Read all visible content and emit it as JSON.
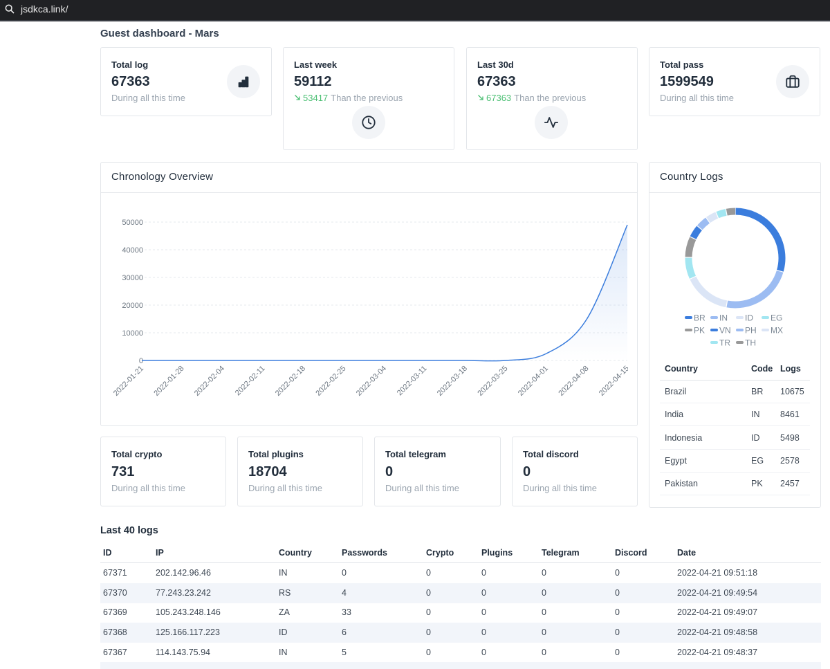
{
  "address_bar": {
    "url": "jsdkca.link/"
  },
  "header": {
    "title": "Guest dashboard - Mars"
  },
  "stat_cards": [
    {
      "label": "Total log",
      "value": 67363,
      "note": "During all this time"
    },
    {
      "label": "Last week",
      "value": 59112,
      "change": 53417,
      "note": "Than the previous"
    },
    {
      "label": "Last 30d",
      "value": 67363,
      "change": 67363,
      "note": "Than the previous"
    },
    {
      "label": "Total pass",
      "value": 1599549,
      "note": "During all this time"
    }
  ],
  "chart_data": [
    {
      "type": "line",
      "title": "Chronology Overview",
      "x": [
        "2022-01-21",
        "2022-01-28",
        "2022-02-04",
        "2022-02-11",
        "2022-02-18",
        "2022-02-25",
        "2022-03-04",
        "2022-03-11",
        "2022-03-18",
        "2022-03-25",
        "2022-04-01",
        "2022-04-08",
        "2022-04-15"
      ],
      "values": [
        0,
        0,
        0,
        0,
        0,
        0,
        0,
        0,
        0,
        0,
        2500,
        15000,
        49000
      ],
      "color": "#3b7ddd",
      "ylim": [
        0,
        50000
      ],
      "yticks": [
        0,
        10000,
        20000,
        30000,
        40000,
        50000
      ],
      "grid": true
    },
    {
      "type": "pie",
      "title": "Country Logs",
      "donut": true,
      "categories": [
        "BR",
        "IN",
        "ID",
        "EG",
        "PK",
        "VN",
        "PH",
        "MX",
        "TR",
        "TH"
      ],
      "values": [
        10675,
        8461,
        5498,
        2578,
        2457,
        1500,
        1400,
        1300,
        1200,
        1100
      ],
      "colors": [
        "#3b7ddd",
        "#9cbcf2",
        "#dbe5f6",
        "#a2e6f1",
        "#999999",
        "#3b7ddd",
        "#9cbcf2",
        "#dbe5f6",
        "#a2e6f1",
        "#999999"
      ]
    }
  ],
  "country_table": {
    "columns": [
      "Country",
      "Code",
      "Logs"
    ],
    "rows": [
      [
        "Brazil",
        "BR",
        10675
      ],
      [
        "India",
        "IN",
        8461
      ],
      [
        "Indonesia",
        "ID",
        5498
      ],
      [
        "Egypt",
        "EG",
        2578
      ],
      [
        "Pakistan",
        "PK",
        2457
      ]
    ]
  },
  "bottom_cards": [
    {
      "label": "Total crypto",
      "value": 731,
      "note": "During all this time"
    },
    {
      "label": "Total plugins",
      "value": 18704,
      "note": "During all this time"
    },
    {
      "label": "Total telegram",
      "value": 0,
      "note": "During all this time"
    },
    {
      "label": "Total discord",
      "value": 0,
      "note": "During all this time"
    }
  ],
  "logs": {
    "title": "Last 40 logs",
    "columns": [
      "ID",
      "IP",
      "Country",
      "Passwords",
      "Crypto",
      "Plugins",
      "Telegram",
      "Discord",
      "Date"
    ],
    "rows": [
      [
        67371,
        "202.142.96.46",
        "IN",
        0,
        0,
        0,
        0,
        0,
        "2022-04-21 09:51:18"
      ],
      [
        67370,
        "77.243.23.242",
        "RS",
        4,
        0,
        0,
        0,
        0,
        "2022-04-21 09:49:54"
      ],
      [
        67369,
        "105.243.248.146",
        "ZA",
        33,
        0,
        0,
        0,
        0,
        "2022-04-21 09:49:07"
      ],
      [
        67368,
        "125.166.117.223",
        "ID",
        6,
        0,
        0,
        0,
        0,
        "2022-04-21 09:48:58"
      ],
      [
        67367,
        "114.143.75.94",
        "IN",
        5,
        0,
        0,
        0,
        0,
        "2022-04-21 09:48:37"
      ]
    ]
  }
}
